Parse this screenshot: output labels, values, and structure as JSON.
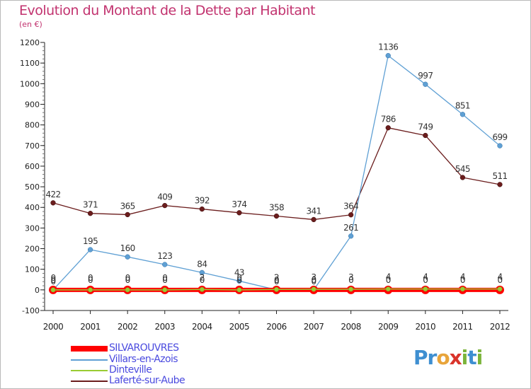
{
  "title": "Evolution du Montant de la Dette par Habitant",
  "subtitle": "(en €)",
  "logo": {
    "text": "Proxiti",
    "letters": [
      {
        "ch": "P",
        "color": "#3e8fd1"
      },
      {
        "ch": "r",
        "color": "#3e8fd1"
      },
      {
        "ch": "o",
        "color": "#e8a43a"
      },
      {
        "ch": "x",
        "color": "#d9342b"
      },
      {
        "ch": "i",
        "color": "#7bb43a"
      },
      {
        "ch": "t",
        "color": "#3e8fd1"
      },
      {
        "ch": "i",
        "color": "#7bb43a"
      }
    ]
  },
  "chart_data": {
    "type": "line",
    "title": "Evolution du Montant de la Dette par Habitant",
    "ylabel": "(en €)",
    "xlabel": "",
    "x": [
      "2000",
      "2001",
      "2002",
      "2003",
      "2004",
      "2005",
      "2006",
      "2007",
      "2008",
      "2009",
      "2010",
      "2011",
      "2012"
    ],
    "ylim": [
      -100,
      1200
    ],
    "yticks": [
      -100,
      0,
      100,
      200,
      300,
      400,
      500,
      600,
      700,
      800,
      900,
      1000,
      1100,
      1200
    ],
    "grid": false,
    "legend_position": "bottom-left",
    "series": [
      {
        "name": "SILVAROUVRES",
        "color": "#ff0000",
        "values": [
          0,
          0,
          0,
          0,
          0,
          0,
          0,
          0,
          0,
          0,
          0,
          0,
          0
        ],
        "labels": [
          "0",
          "0",
          "0",
          "0",
          "0",
          "0",
          "0",
          "0",
          "0",
          "0",
          "0",
          "0",
          "0"
        ]
      },
      {
        "name": "Villars-en-Azois",
        "color": "#5fa0d4",
        "values": [
          0,
          195,
          160,
          123,
          84,
          43,
          0,
          0,
          261,
          1136,
          997,
          851,
          699
        ],
        "labels": [
          "0",
          "195",
          "160",
          "123",
          "84",
          "43",
          "0",
          "0",
          "261",
          "1136",
          "997",
          "851",
          "699"
        ]
      },
      {
        "name": "Dinteville",
        "color": "#99cc33",
        "values": [
          0,
          0,
          0,
          0,
          2,
          0,
          2,
          3,
          3,
          4,
          4,
          4,
          4
        ],
        "labels": [
          "0",
          "0",
          "0",
          "0",
          "2",
          "0",
          "2",
          "3",
          "3",
          "4",
          "4",
          "4",
          "4"
        ]
      },
      {
        "name": "Laferté-sur-Aube",
        "color": "#6b1d1d",
        "values": [
          422,
          371,
          365,
          409,
          392,
          374,
          358,
          341,
          364,
          786,
          749,
          545,
          511
        ],
        "labels": [
          "422",
          "371",
          "365",
          "409",
          "392",
          "374",
          "358",
          "341",
          "364",
          "786",
          "749",
          "545",
          "511"
        ]
      }
    ]
  }
}
